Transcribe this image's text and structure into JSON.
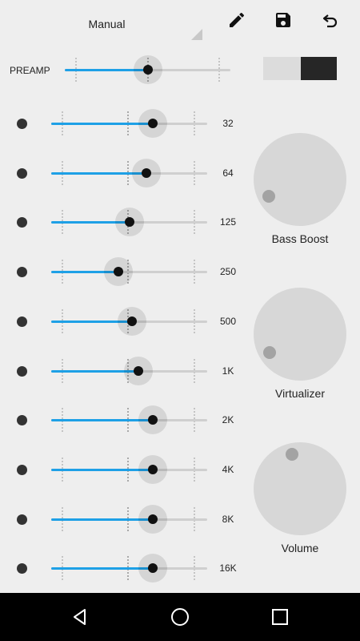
{
  "header": {
    "preset": "Manual",
    "icons": [
      "pencil-icon",
      "save-icon",
      "undo-icon"
    ]
  },
  "preamp": {
    "label": "PREAMP",
    "value": 0.5,
    "enabled": true
  },
  "bands": [
    {
      "label": "32",
      "value": 0.65
    },
    {
      "label": "64",
      "value": 0.61
    },
    {
      "label": "125",
      "value": 0.5
    },
    {
      "label": "250",
      "value": 0.43
    },
    {
      "label": "500",
      "value": 0.52
    },
    {
      "label": "1K",
      "value": 0.56
    },
    {
      "label": "2K",
      "value": 0.65
    },
    {
      "label": "4K",
      "value": 0.65
    },
    {
      "label": "8K",
      "value": 0.65
    },
    {
      "label": "16K",
      "value": 0.65
    }
  ],
  "effects": {
    "bass_boost": {
      "label": "Bass Boost",
      "level": 0.0
    },
    "virtualizer": {
      "label": "Virtualizer",
      "level": 0.0
    },
    "volume": {
      "label": "Volume",
      "level": 0.45
    }
  },
  "colors": {
    "accent": "#1ea0e6",
    "background": "#eeeeee",
    "thumb": "#111111",
    "knob": "#d7d7d7",
    "navbar": "#000000"
  },
  "navbar": {
    "icons": [
      "back-icon",
      "home-icon",
      "recents-icon"
    ]
  }
}
